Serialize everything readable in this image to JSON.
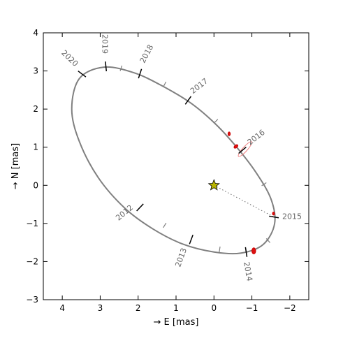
{
  "chart_data": {
    "type": "scatter",
    "title": "",
    "xlabel": "→ E [mas]",
    "ylabel": "→ N [mas]",
    "xlim": [
      4.5,
      -2.5
    ],
    "ylim": [
      -3,
      4
    ],
    "x_reversed": true,
    "grid": false,
    "x_ticks": [
      4,
      3,
      2,
      1,
      0,
      -1,
      -2
    ],
    "x_tick_labels": [
      "4",
      "3",
      "2",
      "1",
      "0",
      "−1",
      "−2"
    ],
    "y_ticks": [
      -3,
      -2,
      -1,
      0,
      1,
      2,
      3,
      4
    ],
    "y_tick_labels": [
      "−3",
      "−2",
      "−1",
      "0",
      "1",
      "2",
      "3",
      "4"
    ],
    "orbit": {
      "color": "#808080",
      "points": [
        {
          "x": 2.9,
          "y": 3.1
        },
        {
          "x": 2.1,
          "y": 2.95
        },
        {
          "x": 1.35,
          "y": 2.6
        },
        {
          "x": 0.6,
          "y": 2.15
        },
        {
          "x": -0.05,
          "y": 1.6
        },
        {
          "x": -0.6,
          "y": 1.0
        },
        {
          "x": -1.1,
          "y": 0.35
        },
        {
          "x": -1.5,
          "y": -0.35
        },
        {
          "x": -1.6,
          "y": -1.0
        },
        {
          "x": -1.3,
          "y": -1.55
        },
        {
          "x": -0.7,
          "y": -1.78
        },
        {
          "x": 0.0,
          "y": -1.75
        },
        {
          "x": 0.8,
          "y": -1.55
        },
        {
          "x": 1.6,
          "y": -1.15
        },
        {
          "x": 2.35,
          "y": -0.6
        },
        {
          "x": 3.05,
          "y": 0.2
        },
        {
          "x": 3.55,
          "y": 1.15
        },
        {
          "x": 3.75,
          "y": 2.0
        },
        {
          "x": 3.55,
          "y": 2.8
        },
        {
          "x": 2.9,
          "y": 3.1
        }
      ]
    },
    "epochs": [
      {
        "year": "2012",
        "x": 1.95,
        "y": -0.58,
        "label_dx": -22,
        "label_dy": 8,
        "angle": -40
      },
      {
        "year": "2013",
        "x": 0.6,
        "y": -1.42,
        "label_dx": -14,
        "label_dy": 26,
        "angle": -70
      },
      {
        "year": "2014",
        "x": -0.85,
        "y": -1.75,
        "label_dx": 2,
        "label_dy": 28,
        "angle": 80
      },
      {
        "year": "2015",
        "x": -1.58,
        "y": -0.83,
        "label_dx": 26,
        "label_dy": 0,
        "angle": 0
      },
      {
        "year": "2016",
        "x": -0.75,
        "y": 0.92,
        "label_dx": 20,
        "label_dy": -18,
        "angle": -38
      },
      {
        "year": "2017",
        "x": 0.68,
        "y": 2.23,
        "label_dx": 16,
        "label_dy": -20,
        "angle": -38
      },
      {
        "year": "2018",
        "x": 1.95,
        "y": 2.93,
        "label_dx": 10,
        "label_dy": -28,
        "angle": -62
      },
      {
        "year": "2019",
        "x": 2.85,
        "y": 3.12,
        "label_dx": -2,
        "label_dy": -32,
        "angle": 90
      },
      {
        "year": "2020",
        "x": 3.48,
        "y": 2.92,
        "label_dx": -18,
        "label_dy": -22,
        "angle": 44
      }
    ],
    "half_epochs": [
      {
        "x": 1.3,
        "y": -1.05
      },
      {
        "x": -0.15,
        "y": -1.68
      },
      {
        "x": -1.43,
        "y": -1.45
      },
      {
        "x": -1.32,
        "y": 0.03
      },
      {
        "x": -0.05,
        "y": 1.68
      },
      {
        "x": 1.3,
        "y": 2.65
      },
      {
        "x": 2.45,
        "y": 3.07
      }
    ],
    "observations": [
      {
        "x": -0.4,
        "y": 1.35,
        "rx": 0.03,
        "ry": 0.05,
        "angle": 0
      },
      {
        "x": -0.58,
        "y": 1.02,
        "rx": 0.06,
        "ry": 0.035,
        "angle": -40
      },
      {
        "x": -0.82,
        "y": 0.95,
        "rx": 0.26,
        "ry": 0.06,
        "angle": -48
      },
      {
        "x": -1.57,
        "y": -0.74,
        "rx": 0.02,
        "ry": 0.04,
        "angle": 0
      },
      {
        "x": -1.05,
        "y": -1.72,
        "rx": 0.05,
        "ry": 0.08,
        "angle": 0
      }
    ],
    "star": {
      "x": 0,
      "y": 0,
      "color": "#b8b400"
    },
    "projection_line": {
      "x1": 0,
      "y1": 0,
      "x2": -1.58,
      "y2": -0.83
    }
  }
}
